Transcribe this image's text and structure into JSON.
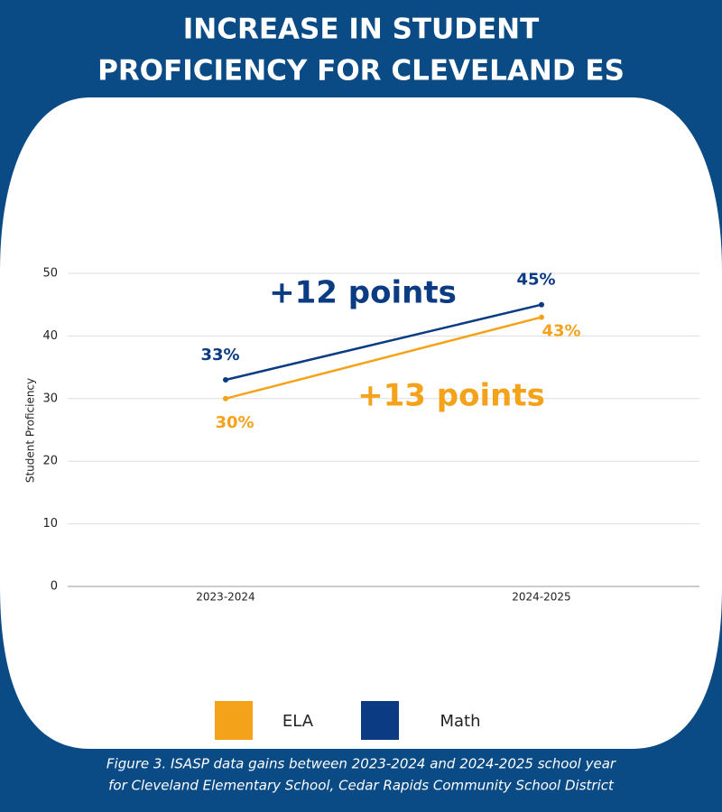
{
  "chart_data": {
    "type": "line",
    "title": [
      "INCREASE IN STUDENT",
      "PROFICIENCY FOR CLEVELAND ES"
    ],
    "y_label": "Student Proficiency",
    "categories": [
      "2023-2024",
      "2024-2025"
    ],
    "series": [
      {
        "name": "ELA",
        "color": "#f5a21b",
        "values": [
          30,
          43
        ],
        "value_labels": [
          "30%",
          "43%"
        ]
      },
      {
        "name": "Math",
        "color": "#0b3b82",
        "values": [
          33,
          45
        ],
        "value_labels": [
          "33%",
          "45%"
        ]
      }
    ],
    "annotations": [
      {
        "text": "+12 points",
        "color": "#0b3b82"
      },
      {
        "text": "+13 points",
        "color": "#f5a21b"
      }
    ],
    "ylim": [
      0,
      50
    ],
    "yticks": [
      0,
      10,
      20,
      30,
      40,
      50
    ],
    "grid": true,
    "caption": [
      "Figure 3. ISASP data gains between 2023-2024 and 2024-2025 school year",
      "for Cleveland Elementary School, Cedar Rapids Community School District"
    ]
  }
}
